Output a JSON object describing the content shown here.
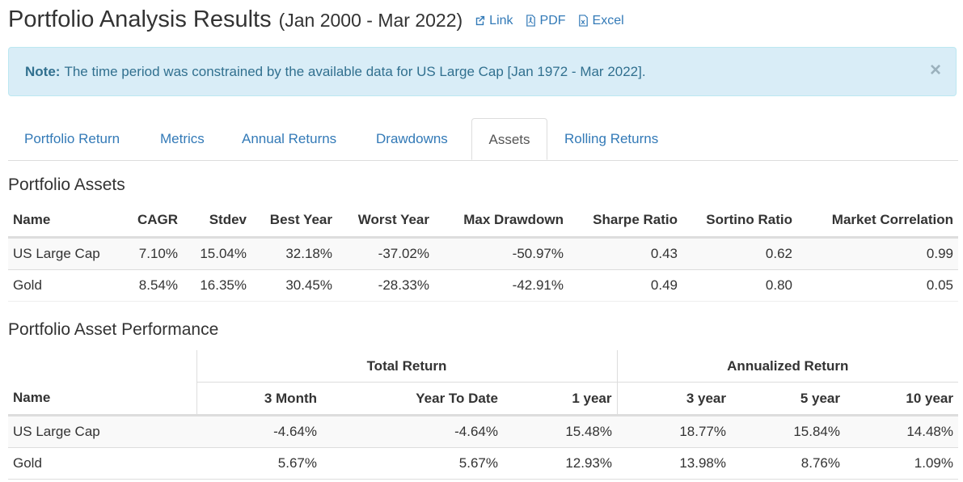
{
  "header": {
    "title": "Portfolio Analysis Results",
    "date_range": "(Jan 2000 - Mar 2022)",
    "links": [
      {
        "label": "Link",
        "icon": "external-link-icon"
      },
      {
        "label": "PDF",
        "icon": "pdf-file-icon"
      },
      {
        "label": "Excel",
        "icon": "excel-file-icon"
      }
    ]
  },
  "alert": {
    "prefix": "Note:",
    "message": "The time period was constrained by the available data for US Large Cap [Jan 1972 - Mar 2022].",
    "close": "×"
  },
  "tabs": [
    {
      "label": "Portfolio Return",
      "active": false
    },
    {
      "label": "Metrics",
      "active": false
    },
    {
      "label": "Annual Returns",
      "active": false
    },
    {
      "label": "Drawdowns",
      "active": false
    },
    {
      "label": "Assets",
      "active": true
    },
    {
      "label": "Rolling Returns",
      "active": false
    }
  ],
  "assets": {
    "heading": "Portfolio Assets",
    "columns": [
      "Name",
      "CAGR",
      "Stdev",
      "Best Year",
      "Worst Year",
      "Max Drawdown",
      "Sharpe Ratio",
      "Sortino Ratio",
      "Market Correlation"
    ],
    "rows": [
      [
        "US Large Cap",
        "7.10%",
        "15.04%",
        "32.18%",
        "-37.02%",
        "-50.97%",
        "0.43",
        "0.62",
        "0.99"
      ],
      [
        "Gold",
        "8.54%",
        "16.35%",
        "30.45%",
        "-28.33%",
        "-42.91%",
        "0.49",
        "0.80",
        "0.05"
      ]
    ]
  },
  "performance": {
    "heading": "Portfolio Asset Performance",
    "groups": {
      "total_return": "Total Return",
      "annualized_return": "Annualized Return"
    },
    "columns": [
      "Name",
      "3 Month",
      "Year To Date",
      "1 year",
      "3 year",
      "5 year",
      "10 year"
    ],
    "rows": [
      [
        "US Large Cap",
        "-4.64%",
        "-4.64%",
        "15.48%",
        "18.77%",
        "15.84%",
        "14.48%"
      ],
      [
        "Gold",
        "5.67%",
        "5.67%",
        "12.93%",
        "13.98%",
        "8.76%",
        "1.09%"
      ]
    ]
  },
  "colors": {
    "link": "#337ab7",
    "alert_bg": "#d9edf7",
    "alert_text": "#31708f"
  }
}
